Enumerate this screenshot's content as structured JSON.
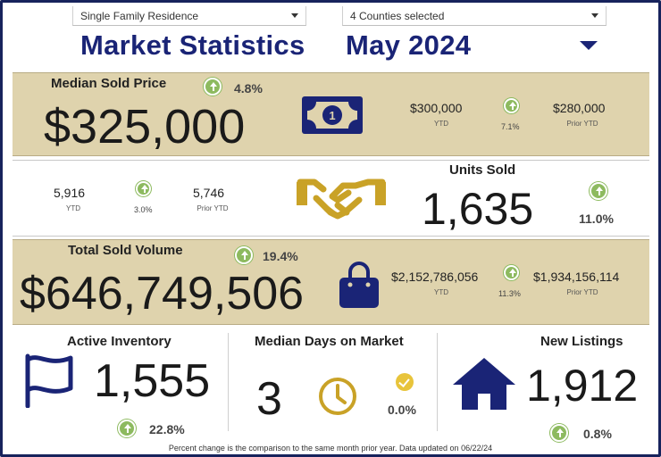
{
  "filters": {
    "property_type": "Single Family Residence",
    "counties": "4 Counties selected"
  },
  "header": {
    "title": "Market Statistics",
    "period": "May 2024"
  },
  "median_sold_price": {
    "label": "Median Sold Price",
    "value": "$325,000",
    "change": "4.8%",
    "ytd_value": "$300,000",
    "ytd_label": "YTD",
    "ytd_change": "7.1%",
    "prior_ytd_value": "$280,000",
    "prior_ytd_label": "Prior YTD",
    "icon": "money-bill-icon"
  },
  "units_sold": {
    "label": "Units Sold",
    "value": "1,635",
    "change": "11.0%",
    "ytd_value": "5,916",
    "ytd_label": "YTD",
    "ytd_change": "3.0%",
    "prior_ytd_value": "5,746",
    "prior_ytd_label": "Prior YTD",
    "icon": "handshake-icon"
  },
  "total_sold_volume": {
    "label": "Total Sold Volume",
    "value": "$646,749,506",
    "change": "19.4%",
    "ytd_value": "$2,152,786,056",
    "ytd_label": "YTD",
    "ytd_change": "11.3%",
    "prior_ytd_value": "$1,934,156,114",
    "prior_ytd_label": "Prior YTD",
    "icon": "shopping-bag-icon"
  },
  "active_inventory": {
    "label": "Active Inventory",
    "value": "1,555",
    "change": "22.8%",
    "icon": "flag-icon"
  },
  "median_days_on_market": {
    "label": "Median Days on Market",
    "value": "3",
    "change": "0.0%",
    "icon": "clock-icon"
  },
  "new_listings": {
    "label": "New Listings",
    "value": "1,912",
    "change": "0.8%",
    "icon": "home-icon"
  },
  "footer": "Percent change is the comparison to the same month prior year. Data updated on 06/22/24",
  "colors": {
    "navy": "#1a2476",
    "tan": "#dfd3ad",
    "gold": "#c9a227",
    "up_green": "#8dba5f",
    "check_yellow": "#e8c43b"
  }
}
